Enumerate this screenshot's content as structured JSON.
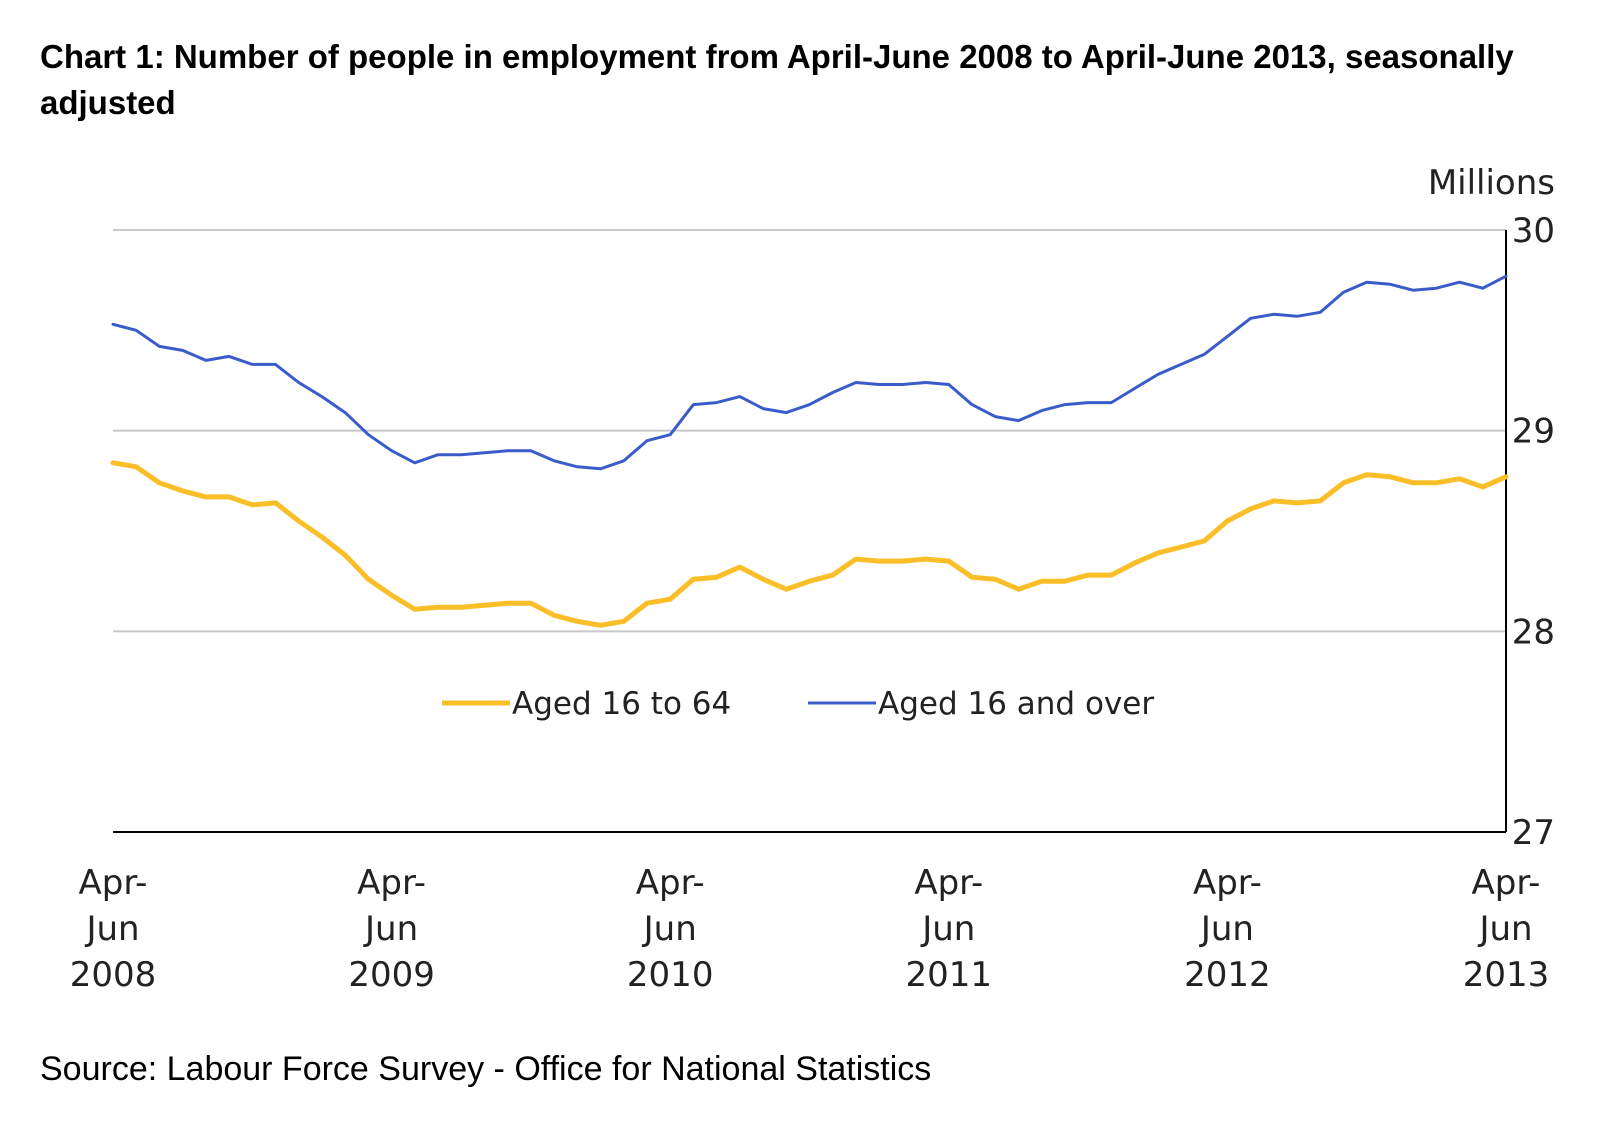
{
  "chart_data": {
    "type": "line",
    "title": "Chart 1: Number of people in employment from April-June 2008 to April-June 2013, seasonally adjusted",
    "ylabel": "Millions",
    "ylim": [
      27,
      30
    ],
    "yticks": [
      "27",
      "28",
      "29",
      "30"
    ],
    "grid": true,
    "legend_position": "center",
    "x_ticks": [
      {
        "lines": [
          "Apr-",
          "Jun",
          "2008"
        ],
        "index": 0
      },
      {
        "lines": [
          "Apr-",
          "Jun",
          "2009"
        ],
        "index": 12
      },
      {
        "lines": [
          "Apr-",
          "Jun",
          "2010"
        ],
        "index": 24
      },
      {
        "lines": [
          "Apr-",
          "Jun",
          "2011"
        ],
        "index": 36
      },
      {
        "lines": [
          "Apr-",
          "Jun",
          "2012"
        ],
        "index": 48
      },
      {
        "lines": [
          "Apr-",
          "Jun",
          "2013"
        ],
        "index": 60
      }
    ],
    "series": [
      {
        "name": "Aged 16 to 64",
        "color": "#F9BE28",
        "values": [
          28.84,
          28.82,
          28.74,
          28.7,
          28.67,
          28.67,
          28.63,
          28.64,
          28.55,
          28.47,
          28.38,
          28.26,
          28.18,
          28.11,
          28.12,
          28.12,
          28.13,
          28.14,
          28.14,
          28.08,
          28.05,
          28.03,
          28.05,
          28.14,
          28.16,
          28.26,
          28.27,
          28.32,
          28.26,
          28.21,
          28.25,
          28.28,
          28.36,
          28.35,
          28.35,
          28.36,
          28.35,
          28.27,
          28.26,
          28.21,
          28.25,
          28.25,
          28.28,
          28.28,
          28.34,
          28.39,
          28.42,
          28.45,
          28.55,
          28.61,
          28.65,
          28.64,
          28.65,
          28.74,
          28.78,
          28.77,
          28.74,
          28.74,
          28.76,
          28.72,
          28.77
        ]
      },
      {
        "name": "Aged 16 and over",
        "color": "#3A5CCB",
        "values": [
          29.53,
          29.5,
          29.42,
          29.4,
          29.35,
          29.37,
          29.33,
          29.33,
          29.24,
          29.17,
          29.09,
          28.98,
          28.9,
          28.84,
          28.88,
          28.88,
          28.89,
          28.9,
          28.9,
          28.85,
          28.82,
          28.81,
          28.85,
          28.95,
          28.98,
          29.13,
          29.14,
          29.17,
          29.11,
          29.09,
          29.13,
          29.19,
          29.24,
          29.23,
          29.23,
          29.24,
          29.23,
          29.13,
          29.07,
          29.05,
          29.1,
          29.13,
          29.14,
          29.14,
          29.21,
          29.28,
          29.33,
          29.38,
          29.47,
          29.56,
          29.58,
          29.57,
          29.59,
          29.69,
          29.74,
          29.73,
          29.7,
          29.71,
          29.74,
          29.71,
          29.77
        ]
      }
    ]
  },
  "source": "Source: Labour Force Survey - Office for National Statistics"
}
